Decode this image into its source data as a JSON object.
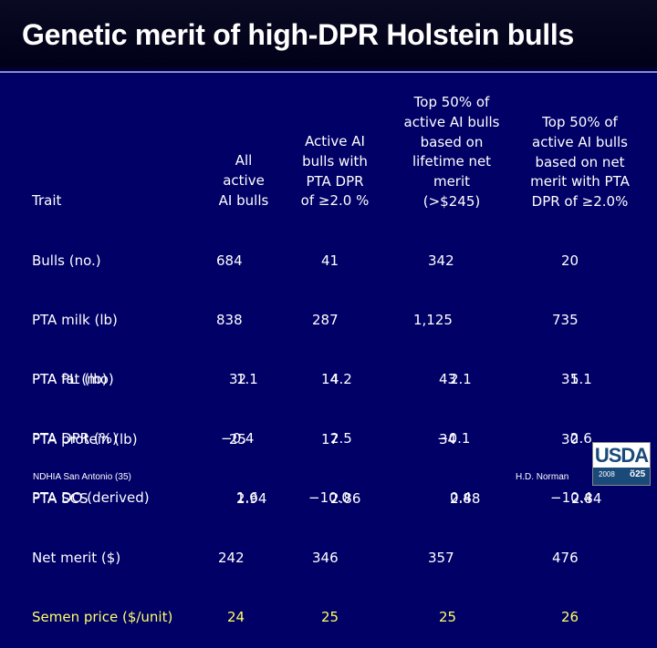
{
  "title": "Genetic merit of high-DPR Holstein bulls",
  "headers": {
    "col1": [
      "All",
      "active",
      "AI bulls"
    ],
    "col2": [
      "Active AI",
      "bulls with",
      "PTA DPR",
      "of ≥2.0 %"
    ],
    "col3": [
      "Top 50% of",
      "active AI bulls",
      "based on",
      "lifetime net",
      "merit",
      "(>$245)"
    ],
    "col4": [
      "Top 50% of",
      "active AI bulls",
      "based on net",
      "merit with PTA",
      "DPR of ≥2.0%"
    ]
  },
  "trait_header": "Trait",
  "group1": {
    "traits": [
      "Bulls (no.)",
      "PTA milk (lb)",
      "PTA fat (lb)",
      "PTA protein (lb)",
      "PTA SCS"
    ],
    "col1": [
      "684",
      "838",
      "32",
      "25",
      "2.94"
    ],
    "col2": [
      "41",
      "287",
      "14",
      "17",
      "2.86"
    ],
    "col3": [
      "342",
      "1,125",
      "43",
      "34",
      "2.88"
    ],
    "col4": [
      "20",
      "735",
      "31",
      "30",
      "2.84"
    ]
  },
  "group2": {
    "traits": [
      "PTA PL (mo)",
      "PTA DPR (%)",
      "PTA DO (derived)",
      "Net merit ($)",
      "Semen price ($/unit)"
    ],
    "col1": [
      "1.1",
      "−0.4",
      "1.6",
      "242",
      "24"
    ],
    "col2": [
      "4.2",
      "2.5",
      "−10.0",
      "346",
      "25"
    ],
    "col3": [
      "2.1",
      "−0.1",
      "0.4",
      "357",
      "25"
    ],
    "col4": [
      "5.1",
      "2.6",
      "−10.4",
      "476",
      "26"
    ]
  },
  "highlight_color": "#ffff66",
  "footer_left": "NDHIA San Antonio (35)",
  "footer_right": "H.D. Norman",
  "logo": {
    "name": "USDA",
    "year": "2008",
    "badge": "õ25"
  }
}
